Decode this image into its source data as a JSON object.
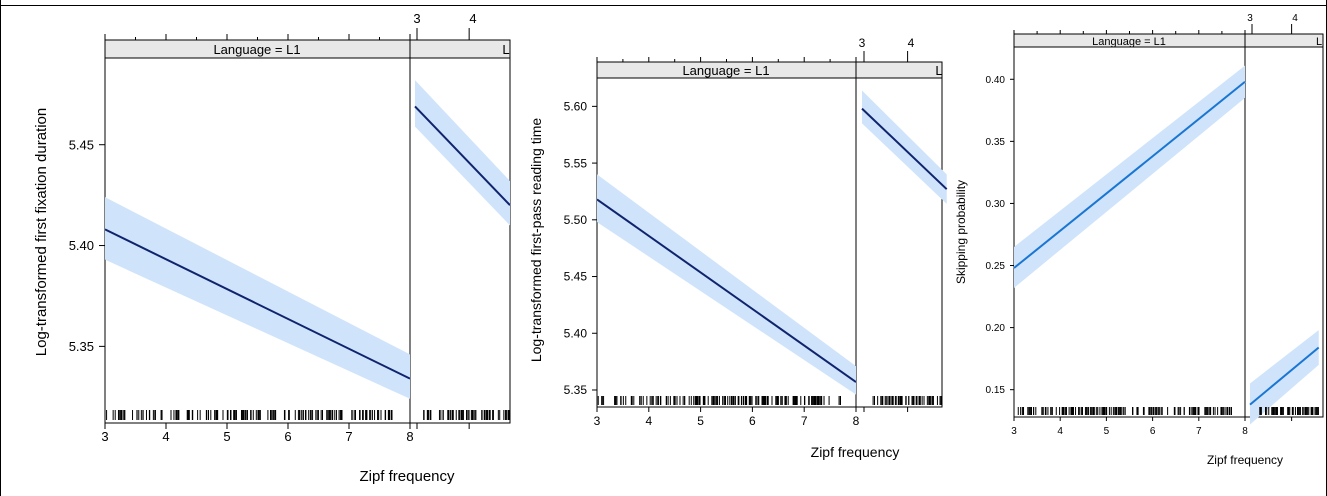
{
  "chart_data": [
    {
      "type": "line",
      "panel": "first-fixation-duration",
      "xlabel": "Zipf frequency",
      "ylabel": "Log-transformed first fixation duration",
      "strips": [
        "Language = L1",
        "L"
      ],
      "top_ticks": [
        "3",
        "4"
      ],
      "x_ticks": [
        "3",
        "4",
        "5",
        "6",
        "7",
        "8"
      ],
      "xlim": [
        3,
        8
      ],
      "y_ticks": [
        "5.35",
        "5.40",
        "5.45"
      ],
      "ylim": [
        5.312,
        5.493
      ],
      "series": [
        {
          "values": [
            [
              3,
              5.408
            ],
            [
              8,
              5.334
            ]
          ],
          "ci_low": [
            5.393,
            5.324
          ],
          "ci_high": [
            5.424,
            5.346
          ]
        }
      ],
      "series_right": [
        {
          "values": [
            [
              3,
              5.469
            ],
            [
              4.7,
              5.42
            ]
          ],
          "ci_low": [
            5.459,
            5.41
          ],
          "ci_high": [
            5.482,
            5.432
          ]
        }
      ],
      "line_color": "#10246e",
      "band_color": "#cfe3fb"
    },
    {
      "type": "line",
      "panel": "first-pass-reading-time",
      "xlabel": "Zipf frequency",
      "ylabel": "Log-transformed first-pass reading time",
      "strips": [
        "Language = L1",
        "L"
      ],
      "top_ticks": [
        "3",
        "4"
      ],
      "x_ticks": [
        "3",
        "4",
        "5",
        "6",
        "7",
        "8"
      ],
      "xlim": [
        3,
        8
      ],
      "y_ticks": [
        "5.35",
        "5.40",
        "5.45",
        "5.50",
        "5.55",
        "5.60"
      ],
      "ylim": [
        5.335,
        5.625
      ],
      "series": [
        {
          "values": [
            [
              3,
              5.518
            ],
            [
              8,
              5.357
            ]
          ],
          "ci_low": [
            5.498,
            5.346
          ],
          "ci_high": [
            5.54,
            5.371
          ]
        }
      ],
      "series_right": [
        {
          "values": [
            [
              3,
              5.598
            ],
            [
              4.8,
              5.527
            ]
          ],
          "ci_low": [
            5.585,
            5.514
          ],
          "ci_high": [
            5.614,
            5.54
          ]
        }
      ],
      "line_color": "#10246e",
      "band_color": "#cfe3fb"
    },
    {
      "type": "line",
      "panel": "skipping-probability",
      "xlabel": "Zipf frequency",
      "ylabel": "Skipping probability",
      "strips": [
        "Language = L1",
        "L"
      ],
      "top_ticks": [
        "3",
        "4"
      ],
      "x_ticks": [
        "3",
        "4",
        "5",
        "6",
        "7",
        "8"
      ],
      "xlim": [
        3,
        8
      ],
      "y_ticks": [
        "0.15",
        "0.20",
        "0.25",
        "0.30",
        "0.35",
        "0.40"
      ],
      "ylim": [
        0.128,
        0.426
      ],
      "series": [
        {
          "values": [
            [
              3,
              0.248
            ],
            [
              8,
              0.398
            ]
          ],
          "ci_low": [
            0.232,
            0.385
          ],
          "ci_high": [
            0.265,
            0.411
          ]
        }
      ],
      "series_right": [
        {
          "values": [
            [
              3,
              0.138
            ],
            [
              4.6,
              0.184
            ]
          ],
          "ci_low": [
            0.122,
            0.17
          ],
          "ci_high": [
            0.155,
            0.198
          ]
        }
      ],
      "line_color": "#1976d2",
      "band_color": "#cfe3fb"
    }
  ]
}
